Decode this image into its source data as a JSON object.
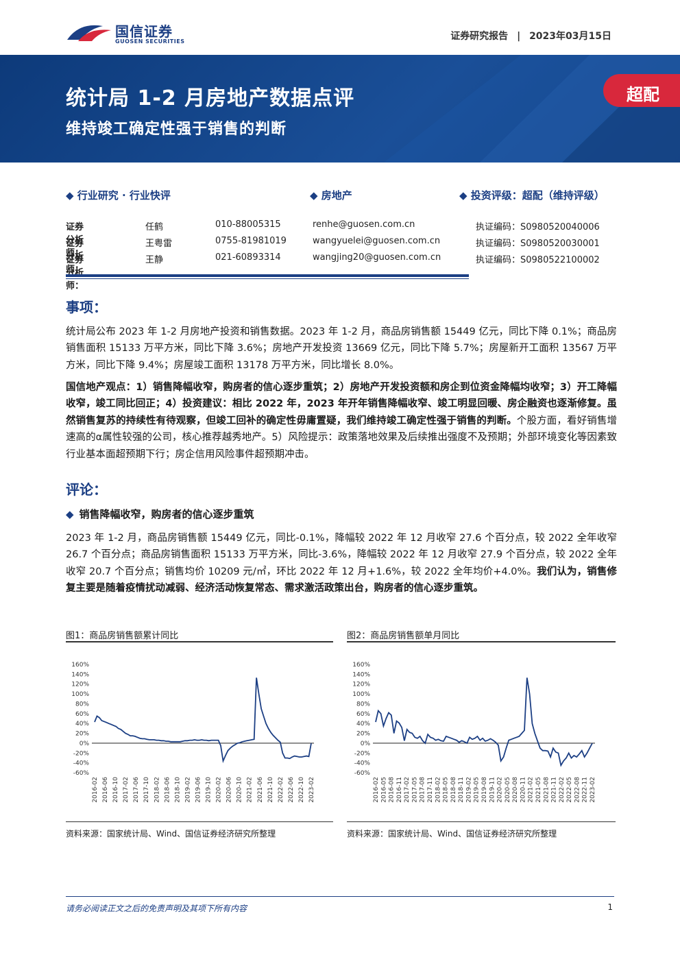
{
  "header": {
    "logo_cn": "国信证券",
    "logo_en": "GUOSEN SECURITIES",
    "report_type": "证券研究报告",
    "separator": "|",
    "date": "2023年03月15日"
  },
  "banner": {
    "title": "统计局 1-2 月房地产数据点评",
    "subtitle": "维持竣工确定性强于销售的判断",
    "rating": "超配"
  },
  "meta": {
    "category": "◆ 行业研究 · 行业快评",
    "industry": "◆ 房地产",
    "rating": "◆ 投资评级：超配（维持评级）"
  },
  "analysts": [
    {
      "role": "证券分析师：",
      "name": "任鹤",
      "phone": "010-88005315",
      "email": "renhe@guosen.com.cn",
      "license": "执证编码：S0980520040006"
    },
    {
      "role": "证券分析师：",
      "name": "王粤雷",
      "phone": "0755-81981019",
      "email": "wangyuelei@guosen.com.cn",
      "license": "执证编码：S0980520030001"
    },
    {
      "role": "证券分析师：",
      "name": "王静",
      "phone": "021-60893314",
      "email": "wangjing20@guosen.com.cn",
      "license": "执证编码：S0980522100002"
    }
  ],
  "sections": {
    "events_heading": "事项：",
    "events_para": "统计局公布 2023 年 1-2 月房地产投资和销售数据。2023 年 1-2 月，商品房销售额 15449 亿元，同比下降 0.1%；商品房销售面积 15133 万平方米，同比下降 3.6%；房地产开发投资 13669 亿元，同比下降 5.7%；房屋新开工面积 13567 万平方米，同比下降 9.4%；房屋竣工面积 13178 万平方米，同比增长 8.0%。",
    "view_bold": "国信地产观点：1）销售降幅收窄，购房者的信心逐步重筑；2）房地产开发投资额和房企到位资金降幅均收窄；3）开工降幅收窄，竣工同比回正；4）投资建议：相比 2022 年，2023 年开年销售降幅收窄、竣工明显回暖、房企融资也逐渐修复。虽然销售复苏的持续性有待观察，但竣工回补的确定性毋庸置疑，我们维持竣工确定性强于销售的判断。",
    "view_normal": "个股方面，看好销售增速高的α属性较强的公司，核心推荐越秀地产。5）风险提示：政策落地效果及后续推出强度不及预期；外部环境变化等因素致行业基本面超预期下行；房企信用风险事件超预期冲击。",
    "comment_heading": "评论：",
    "bullet1": "销售降幅收窄，购房者的信心逐步重筑",
    "bullet1_para_normal": "2023 年 1-2 月，商品房销售额 15449 亿元，同比-0.1%，降幅较 2022 年 12 月收窄 27.6 个百分点，较 2022 全年收窄 26.7 个百分点；商品房销售面积 15133 万平方米，同比-3.6%，降幅较 2022 年 12 月收窄 27.9 个百分点，较 2022 全年收窄 20.7 个百分点；销售均价 10209 元/㎡，环比 2022 年 12 月+1.6%，较 2022 全年均价+4.0%。",
    "bullet1_para_bold": "我们认为，销售修复主要是随着疫情扰动减弱、经济活动恢复常态、需求激活政策出台，购房者的信心逐步重筑。"
  },
  "figures": [
    {
      "title": "图1：商品房销售额累计同比",
      "source": "资料来源：国家统计局、Wind、国信证券经济研究所整理"
    },
    {
      "title": "图2：商品房销售额单月同比",
      "source": "资料来源：国家统计局、Wind、国信证券经济研究所整理"
    }
  ],
  "chart_data": [
    {
      "type": "line",
      "title": "图1：商品房销售额累计同比",
      "ylim": [
        -60,
        160
      ],
      "yticks": [
        "160%",
        "140%",
        "120%",
        "100%",
        "80%",
        "60%",
        "40%",
        "20%",
        "0%",
        "-20%",
        "-40%",
        "-60%"
      ],
      "xticks": [
        "2016-02",
        "2016-06",
        "2016-10",
        "2017-02",
        "2017-06",
        "2017-10",
        "2018-02",
        "2018-06",
        "2018-10",
        "2019-02",
        "2019-06",
        "2019-10",
        "2020-02",
        "2020-06",
        "2020-10",
        "2021-02",
        "2021-06",
        "2021-10",
        "2022-02",
        "2022-06",
        "2022-10",
        "2023-02"
      ],
      "series": [
        {
          "values": [
            43,
            55,
            52,
            46,
            44,
            42,
            40,
            38,
            36,
            34,
            30,
            28,
            24,
            20,
            18,
            15,
            15,
            14,
            12,
            10,
            9,
            9,
            8,
            7,
            7,
            7,
            6,
            6,
            5,
            5,
            4,
            4,
            3,
            3,
            3,
            3,
            3,
            4,
            5,
            5,
            6,
            6,
            7,
            6,
            6,
            7,
            6,
            6,
            5,
            6,
            6,
            6,
            6,
            -5,
            -36,
            -25,
            -15,
            -10,
            -6,
            -3,
            0,
            1,
            3,
            4,
            5,
            6,
            7,
            8,
            133,
            100,
            70,
            55,
            40,
            30,
            22,
            16,
            11,
            6,
            2,
            -20,
            -30,
            -30,
            -31,
            -28,
            -26,
            -27,
            -28,
            -28,
            -27,
            -26,
            -27,
            -0.1
          ]
        }
      ]
    },
    {
      "type": "line",
      "title": "图2：商品房销售额单月同比",
      "ylim": [
        -60,
        160
      ],
      "yticks": [
        "160%",
        "140%",
        "120%",
        "100%",
        "80%",
        "60%",
        "40%",
        "20%",
        "0%",
        "-20%",
        "-40%",
        "-60%"
      ],
      "xticks": [
        "2016-02",
        "2016-05",
        "2016-08",
        "2016-11",
        "2017-02",
        "2017-05",
        "2017-08",
        "2017-11",
        "2018-02",
        "2018-05",
        "2018-08",
        "2018-11",
        "2019-02",
        "2019-05",
        "2019-08",
        "2019-11",
        "2020-02",
        "2020-05",
        "2020-08",
        "2020-11",
        "2021-02",
        "2021-05",
        "2021-08",
        "2021-11",
        "2022-02",
        "2022-05",
        "2022-08",
        "2022-11",
        "2023-02"
      ],
      "series": [
        {
          "values": [
            43,
            66,
            60,
            35,
            50,
            62,
            57,
            20,
            45,
            41,
            32,
            5,
            28,
            22,
            20,
            12,
            10,
            14,
            5,
            0,
            18,
            12,
            10,
            6,
            8,
            5,
            4,
            14,
            12,
            10,
            8,
            6,
            2,
            5,
            3,
            0,
            12,
            8,
            10,
            14,
            6,
            10,
            4,
            6,
            9,
            6,
            2,
            -4,
            -36,
            -28,
            -10,
            6,
            8,
            10,
            12,
            14,
            20,
            26,
            133,
            100,
            40,
            20,
            5,
            -10,
            -15,
            -15,
            -16,
            -28,
            -10,
            -18,
            -20,
            -45,
            -36,
            -30,
            -20,
            -30,
            -25,
            -28,
            -22,
            -15,
            -28,
            -20,
            -10,
            -0.1
          ]
        }
      ]
    }
  ]
}
